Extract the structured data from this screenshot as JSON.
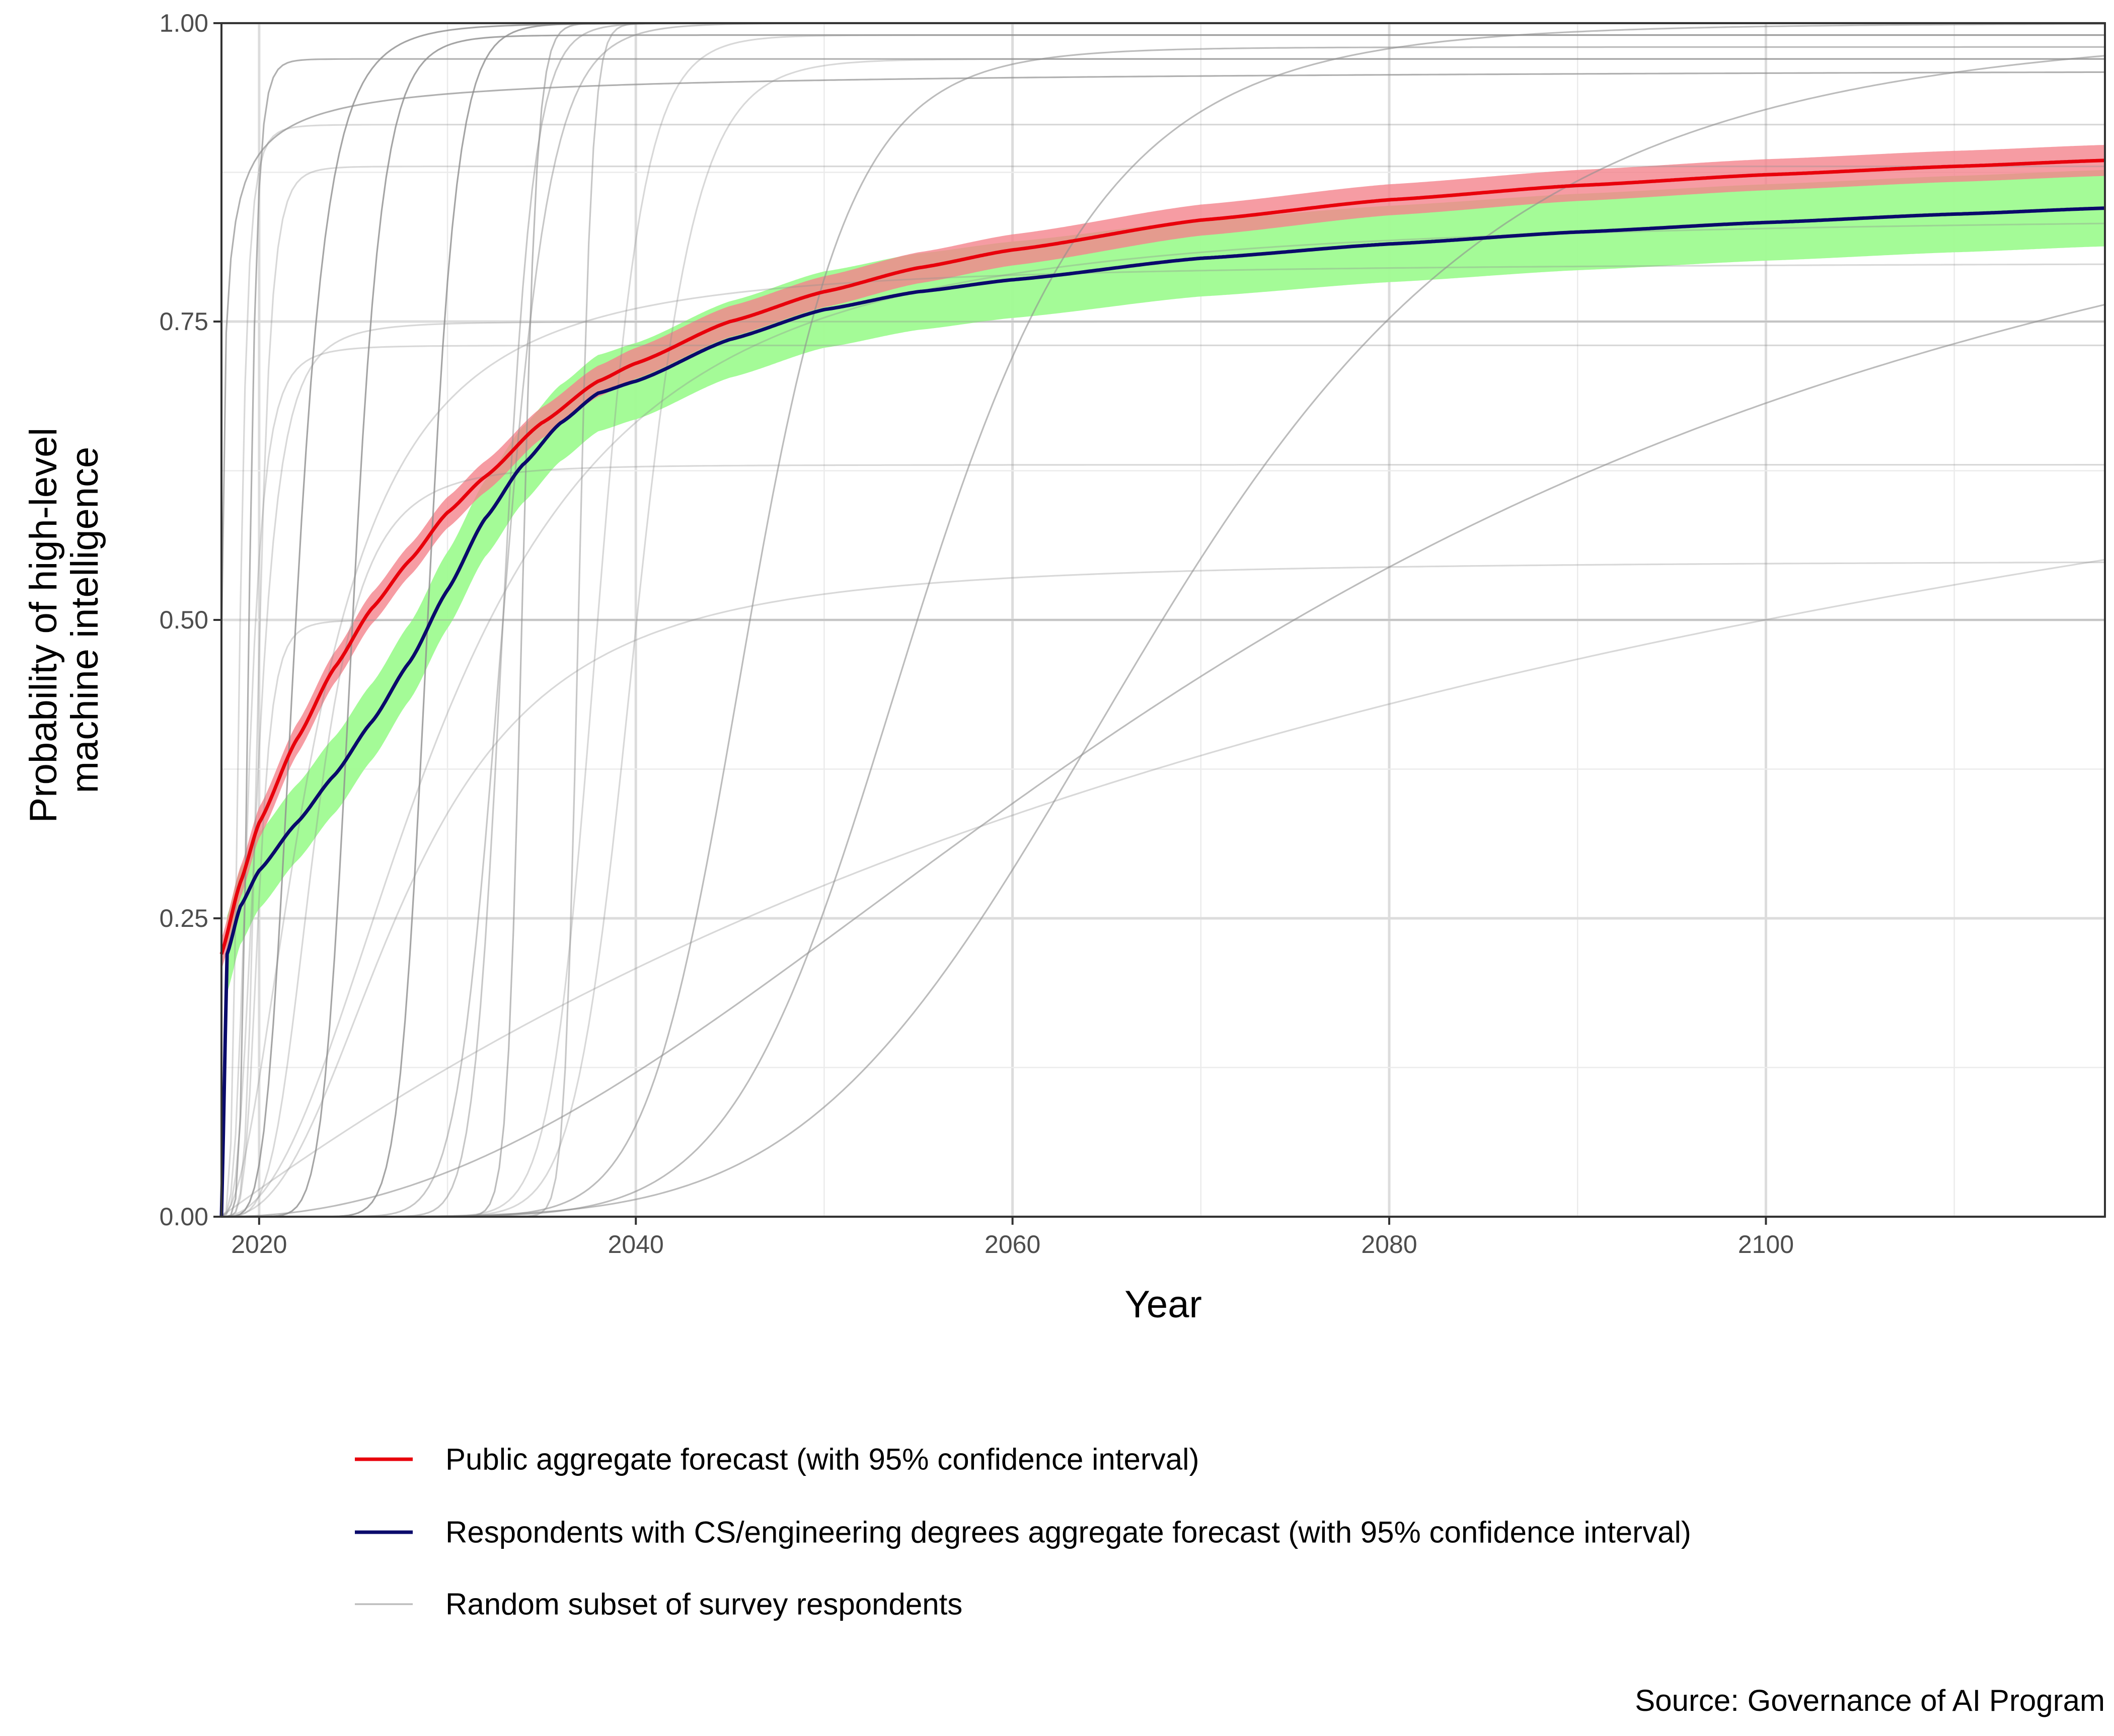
{
  "chart_data": {
    "type": "line",
    "title": "",
    "xlabel": "Year",
    "ylabel": [
      "Probability of high-level",
      "machine intelligence"
    ],
    "xlim": [
      2018,
      2118
    ],
    "ylim": [
      0,
      1
    ],
    "x_ticks": [
      2020,
      2040,
      2060,
      2080,
      2100
    ],
    "x_tick_labels": [
      "2020",
      "2040",
      "2060",
      "2080",
      "2100"
    ],
    "y_ticks": [
      0,
      0.25,
      0.5,
      0.75,
      1
    ],
    "y_tick_labels": [
      "0.00",
      "0.25",
      "0.50",
      "0.75",
      "1.00"
    ],
    "grid": true,
    "legend_position": "bottom",
    "caption": "Source: Governance of AI Program",
    "colors": {
      "public": "#e8000b",
      "public_band": "#f4838c",
      "cs": "#0a0a6b",
      "cs_band": "#9ffb91",
      "respondents": "#bdbdbd"
    },
    "series": [
      {
        "name": "Public aggregate forecast (with 95% confidence interval)",
        "role": "public",
        "x": [
          2018,
          2019,
          2020,
          2022,
          2024,
          2026,
          2028,
          2030,
          2032,
          2035,
          2038,
          2040,
          2045,
          2050,
          2055,
          2060,
          2070,
          2080,
          2090,
          2100,
          2110,
          2118
        ],
        "y": [
          0.22,
          0.28,
          0.33,
          0.4,
          0.46,
          0.51,
          0.55,
          0.59,
          0.62,
          0.665,
          0.7,
          0.715,
          0.75,
          0.775,
          0.795,
          0.81,
          0.835,
          0.852,
          0.864,
          0.873,
          0.88,
          0.885
        ],
        "ci_halfwidth": 0.013
      },
      {
        "name": "Respondents with CS/engineering degrees aggregate forecast (with 95% confidence interval)",
        "role": "cs",
        "x": [
          2018,
          2018.3,
          2019,
          2020,
          2022,
          2024,
          2026,
          2028,
          2030,
          2032,
          2034,
          2036,
          2038,
          2040,
          2045,
          2050,
          2055,
          2060,
          2070,
          2080,
          2090,
          2100,
          2110,
          2118
        ],
        "y": [
          0.0,
          0.22,
          0.26,
          0.29,
          0.33,
          0.37,
          0.415,
          0.465,
          0.525,
          0.585,
          0.63,
          0.665,
          0.69,
          0.7,
          0.735,
          0.76,
          0.775,
          0.785,
          0.803,
          0.815,
          0.825,
          0.833,
          0.84,
          0.845
        ],
        "ci_halfwidth": 0.032
      },
      {
        "name": "Random subset of survey respondents",
        "role": "respondents",
        "curves": [
          {
            "a": 0.965,
            "m": 2017.5,
            "s": 0.3,
            "k": 1.0,
            "alpha": 0.7
          },
          {
            "a": 0.97,
            "m": 2019.5,
            "s": 1.0,
            "k": 1.1,
            "alpha": 0.7
          },
          {
            "a": 0.915,
            "m": 2019,
            "s": 1.0,
            "k": 1.1,
            "alpha": 0.35
          },
          {
            "a": 0.88,
            "m": 2020,
            "s": 1.5,
            "k": 1.1,
            "alpha": 0.35
          },
          {
            "a": 1.0,
            "m": 2022,
            "s": 4.5,
            "k": 1.3,
            "alpha": 0.8
          },
          {
            "a": 0.99,
            "m": 2025,
            "s": 4.5,
            "k": 1.4,
            "alpha": 0.8
          },
          {
            "a": 1.0,
            "m": 2029,
            "s": 5.0,
            "k": 1.6,
            "alpha": 0.8
          },
          {
            "a": 1.0,
            "m": 2033,
            "s": 5.5,
            "k": 1.7,
            "alpha": 0.5
          },
          {
            "a": 1.0,
            "m": 2034,
            "s": 3.8,
            "k": 2.4,
            "alpha": 0.6
          },
          {
            "a": 1.0,
            "m": 2037,
            "s": 3.5,
            "k": 2.4,
            "alpha": 0.5
          },
          {
            "a": 1.0,
            "m": 2033,
            "s": 7.0,
            "k": 1.4,
            "alpha": 0.5
          },
          {
            "a": 0.99,
            "m": 2038,
            "s": 7.5,
            "k": 1.5,
            "alpha": 0.35
          },
          {
            "a": 0.97,
            "m": 2040,
            "s": 9.0,
            "k": 1.4,
            "alpha": 0.35
          },
          {
            "a": 0.98,
            "m": 2046,
            "s": 13.0,
            "k": 1.2,
            "alpha": 0.6
          },
          {
            "a": 1.0,
            "m": 2055,
            "s": 20.0,
            "k": 1.0,
            "alpha": 0.6
          },
          {
            "a": 1.0,
            "m": 2068,
            "s": 33.0,
            "k": 0.85,
            "alpha": 0.6
          },
          {
            "a": 1.0,
            "m": 2075,
            "s": 60.0,
            "k": 0.55,
            "alpha": 0.6
          },
          {
            "a": 1.0,
            "m": 2100,
            "s": 145.0,
            "k": 0.45,
            "alpha": 0.35
          },
          {
            "a": 0.84,
            "m": 2030,
            "s": 12.0,
            "k": 0.55,
            "alpha": 0.35
          },
          {
            "a": 0.8,
            "m": 2023,
            "s": 6.0,
            "k": 0.6,
            "alpha": 0.35
          },
          {
            "a": 0.73,
            "m": 2019.5,
            "s": 1.0,
            "k": 0.6,
            "alpha": 0.35
          },
          {
            "a": 0.75,
            "m": 2020,
            "s": 1.2,
            "k": 0.5,
            "alpha": 0.35
          },
          {
            "a": 0.63,
            "m": 2023,
            "s": 3.0,
            "k": 0.6,
            "alpha": 0.35
          },
          {
            "a": 0.5,
            "m": 2020,
            "s": 1.2,
            "k": 0.8,
            "alpha": 0.35
          },
          {
            "a": 0.55,
            "m": 2028,
            "s": 8.0,
            "k": 0.5,
            "alpha": 0.35
          }
        ]
      }
    ]
  }
}
